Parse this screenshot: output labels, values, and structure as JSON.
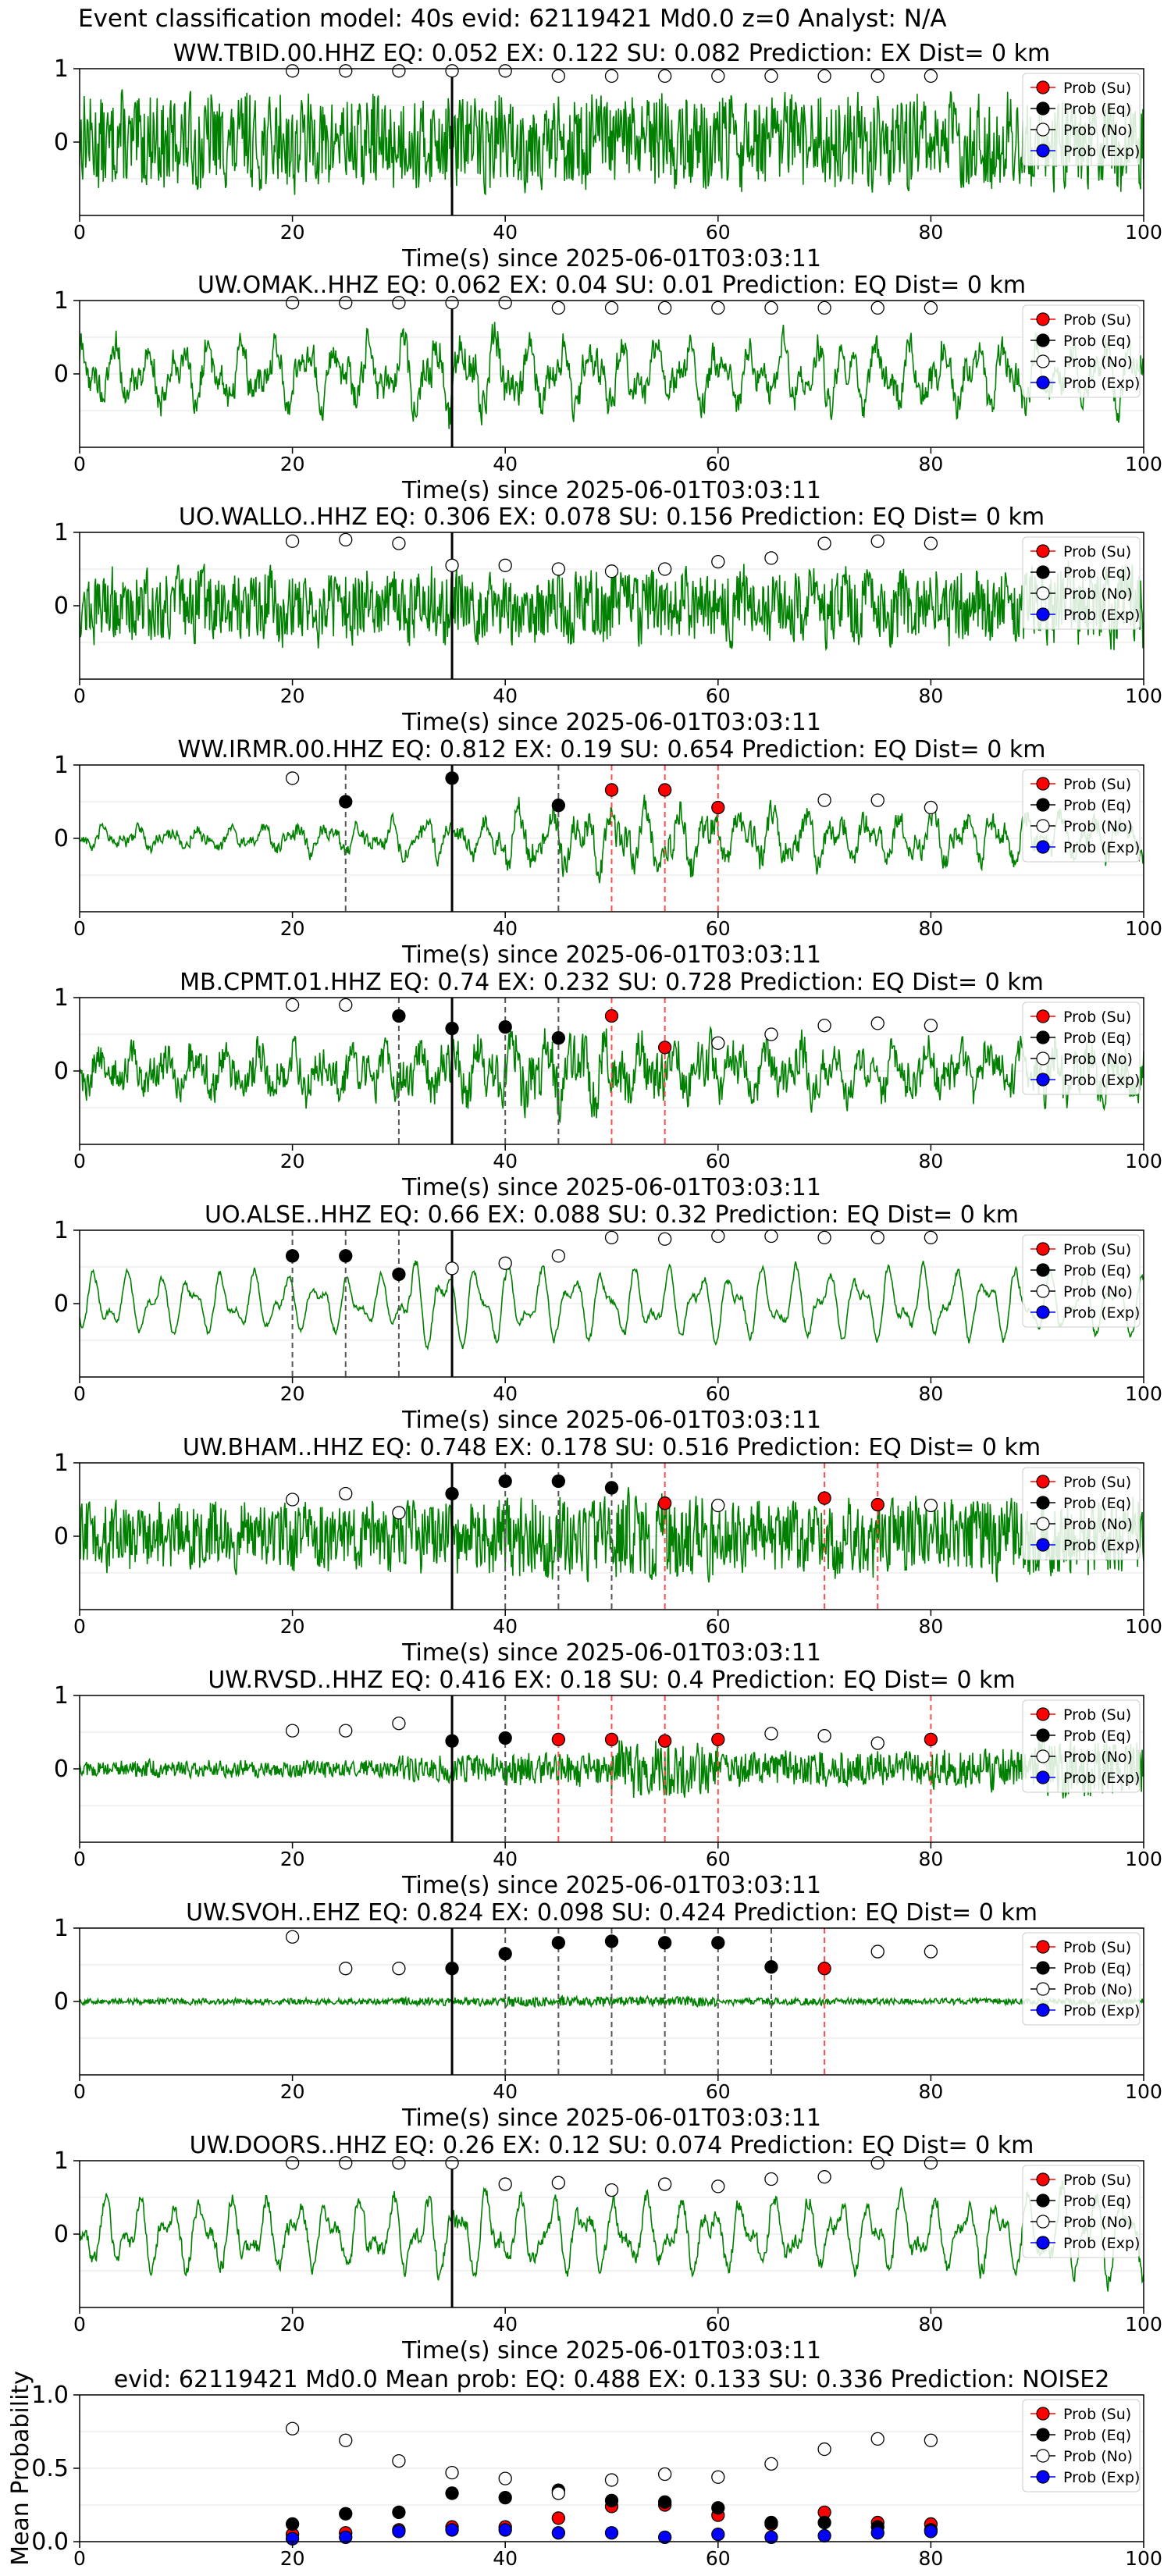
{
  "figure": {
    "title": "Event classification model: 40s evid: 62119421 Md0.0 z=0 Analyst: N/A"
  },
  "colors": {
    "waveform": "#008000",
    "su": "#ff0000",
    "eq": "#000000",
    "no": "#ffffff",
    "exp": "#0000ff",
    "grid": "#e6e6e6"
  },
  "legend": [
    "Prob (Su)",
    "Prob (Eq)",
    "Prob (No)",
    "Prob (Exp)"
  ],
  "chart_data": [
    {
      "type": "line",
      "title": "WW.TBID.00.HHZ   EQ: 0.052  EX: 0.122  SU: 0.082   Prediction: EX    Dist= 0 km",
      "xlabel": "Time(s) since 2025-06-01T03:03:11",
      "xlim": [
        0,
        100
      ],
      "ylim": [
        -1,
        1
      ],
      "xticks": [
        0,
        20,
        40,
        60,
        80,
        100
      ],
      "yticks": [
        0,
        1
      ],
      "pick_time": 35,
      "waveform": {
        "amp": 0.55,
        "smooth": 0.15,
        "env": [
          0.9,
          0.9,
          0.9,
          0.9,
          0.9,
          0.9,
          0.9,
          0.9,
          0.9,
          0.9
        ]
      },
      "markers": {
        "no": [
          [
            20,
            0.97
          ],
          [
            25,
            0.97
          ],
          [
            30,
            0.97
          ],
          [
            35,
            0.97
          ],
          [
            40,
            0.97
          ],
          [
            45,
            0.9
          ],
          [
            50,
            0.9
          ],
          [
            55,
            0.9
          ],
          [
            60,
            0.9
          ],
          [
            65,
            0.9
          ],
          [
            70,
            0.9
          ],
          [
            75,
            0.9
          ],
          [
            80,
            0.9
          ]
        ],
        "eq": [],
        "su": [],
        "exp": []
      },
      "eq_lines": [],
      "su_lines": []
    },
    {
      "type": "line",
      "title": "UW.OMAK..HHZ   EQ: 0.062  EX: 0.04  SU: 0.01   Prediction: EQ    Dist= 0 km",
      "xlabel": "Time(s) since 2025-06-01T03:03:11",
      "xlim": [
        0,
        100
      ],
      "ylim": [
        -1,
        1
      ],
      "xticks": [
        0,
        20,
        40,
        60,
        80,
        100
      ],
      "yticks": [
        0,
        1
      ],
      "pick_time": 35,
      "waveform": {
        "amp": 0.6,
        "smooth": 0.6,
        "env": [
          0.8,
          0.8,
          0.8,
          1.0,
          0.9,
          0.8,
          0.8,
          0.8,
          0.9,
          0.8
        ]
      },
      "markers": {
        "no": [
          [
            20,
            0.97
          ],
          [
            25,
            0.97
          ],
          [
            30,
            0.97
          ],
          [
            35,
            0.97
          ],
          [
            40,
            0.97
          ],
          [
            45,
            0.9
          ],
          [
            50,
            0.9
          ],
          [
            55,
            0.9
          ],
          [
            60,
            0.9
          ],
          [
            65,
            0.9
          ],
          [
            70,
            0.9
          ],
          [
            75,
            0.9
          ],
          [
            80,
            0.9
          ]
        ],
        "eq": [],
        "su": [],
        "exp": []
      },
      "eq_lines": [],
      "su_lines": []
    },
    {
      "type": "line",
      "title": "UO.WALLO..HHZ   EQ: 0.306  EX: 0.078  SU: 0.156   Prediction: EQ    Dist= 0 km",
      "xlabel": "Time(s) since 2025-06-01T03:03:11",
      "xlim": [
        0,
        100
      ],
      "ylim": [
        -1,
        1
      ],
      "xticks": [
        0,
        20,
        40,
        60,
        80,
        100
      ],
      "yticks": [
        0,
        1
      ],
      "pick_time": 35,
      "waveform": {
        "amp": 0.45,
        "smooth": 0.2,
        "env": [
          0.9,
          0.9,
          0.9,
          0.9,
          0.9,
          0.9,
          0.9,
          0.9,
          0.9,
          1.0
        ]
      },
      "markers": {
        "no": [
          [
            20,
            0.88
          ],
          [
            25,
            0.9
          ],
          [
            30,
            0.85
          ],
          [
            35,
            0.55
          ],
          [
            40,
            0.55
          ],
          [
            45,
            0.5
          ],
          [
            50,
            0.47
          ],
          [
            55,
            0.5
          ],
          [
            60,
            0.6
          ],
          [
            65,
            0.65
          ],
          [
            70,
            0.85
          ],
          [
            75,
            0.88
          ],
          [
            80,
            0.85
          ]
        ],
        "eq": [],
        "su": [],
        "exp": []
      },
      "eq_lines": [],
      "su_lines": []
    },
    {
      "type": "line",
      "title": "WW.IRMR.00.HHZ   EQ: 0.812  EX: 0.19  SU: 0.654   Prediction: EQ    Dist= 0 km",
      "xlabel": "Time(s) since 2025-06-01T03:03:11",
      "xlim": [
        0,
        100
      ],
      "ylim": [
        -1,
        1
      ],
      "xticks": [
        0,
        20,
        40,
        60,
        80,
        100
      ],
      "yticks": [
        0,
        1
      ],
      "pick_time": 35,
      "waveform": {
        "amp": 0.45,
        "smooth": 0.6,
        "env": [
          0.4,
          0.4,
          0.5,
          0.6,
          1.0,
          1.0,
          0.9,
          0.8,
          0.8,
          0.7
        ]
      },
      "markers": {
        "no": [
          [
            20,
            0.82
          ],
          [
            70,
            0.52
          ],
          [
            75,
            0.52
          ],
          [
            80,
            0.42
          ]
        ],
        "eq": [
          [
            25,
            0.5
          ],
          [
            35,
            0.82
          ],
          [
            45,
            0.45
          ]
        ],
        "su": [
          [
            50,
            0.66
          ],
          [
            55,
            0.66
          ],
          [
            60,
            0.42
          ]
        ],
        "exp": []
      },
      "eq_lines": [
        25,
        45
      ],
      "su_lines": [
        50,
        55,
        60
      ]
    },
    {
      "type": "line",
      "title": "MB.CPMT.01.HHZ   EQ: 0.74  EX: 0.232  SU: 0.728   Prediction: EQ    Dist= 0 km",
      "xlabel": "Time(s) since 2025-06-01T03:03:11",
      "xlim": [
        0,
        100
      ],
      "ylim": [
        -1,
        1
      ],
      "xticks": [
        0,
        20,
        40,
        60,
        80,
        100
      ],
      "yticks": [
        0,
        1
      ],
      "pick_time": 35,
      "waveform": {
        "amp": 0.55,
        "smooth": 0.45,
        "env": [
          0.6,
          0.7,
          0.7,
          0.8,
          1.0,
          0.9,
          0.8,
          0.7,
          0.7,
          0.8
        ]
      },
      "markers": {
        "no": [
          [
            20,
            0.9
          ],
          [
            25,
            0.9
          ],
          [
            60,
            0.38
          ],
          [
            65,
            0.5
          ],
          [
            70,
            0.62
          ],
          [
            75,
            0.65
          ],
          [
            80,
            0.62
          ]
        ],
        "eq": [
          [
            30,
            0.75
          ],
          [
            35,
            0.58
          ],
          [
            40,
            0.6
          ],
          [
            45,
            0.45
          ]
        ],
        "su": [
          [
            50,
            0.75
          ],
          [
            55,
            0.32
          ]
        ],
        "exp": []
      },
      "eq_lines": [
        30,
        40,
        45
      ],
      "su_lines": [
        50,
        55
      ]
    },
    {
      "type": "line",
      "title": "UO.ALSE..HHZ   EQ: 0.66  EX: 0.088  SU: 0.32   Prediction: EQ    Dist= 0 km",
      "xlabel": "Time(s) since 2025-06-01T03:03:11",
      "xlim": [
        0,
        100
      ],
      "ylim": [
        -1,
        1
      ],
      "xticks": [
        0,
        20,
        40,
        60,
        80,
        100
      ],
      "yticks": [
        0,
        1
      ],
      "pick_time": 35,
      "waveform": {
        "amp": 0.5,
        "smooth": 0.85,
        "env": [
          0.7,
          0.7,
          0.6,
          1.0,
          0.8,
          0.8,
          0.8,
          0.8,
          0.8,
          0.7
        ]
      },
      "markers": {
        "no": [
          [
            35,
            0.48
          ],
          [
            40,
            0.55
          ],
          [
            45,
            0.65
          ],
          [
            50,
            0.9
          ],
          [
            55,
            0.88
          ],
          [
            60,
            0.92
          ],
          [
            65,
            0.92
          ],
          [
            70,
            0.9
          ],
          [
            75,
            0.9
          ],
          [
            80,
            0.9
          ]
        ],
        "eq": [
          [
            20,
            0.65
          ],
          [
            25,
            0.65
          ],
          [
            30,
            0.4
          ]
        ],
        "su": [],
        "exp": []
      },
      "eq_lines": [
        20,
        25,
        30
      ],
      "su_lines": []
    },
    {
      "type": "line",
      "title": "UW.BHAM..HHZ   EQ: 0.748  EX: 0.178  SU: 0.516   Prediction: EQ    Dist= 0 km",
      "xlabel": "Time(s) since 2025-06-01T03:03:11",
      "xlim": [
        0,
        100
      ],
      "ylim": [
        -1,
        1
      ],
      "xticks": [
        0,
        20,
        40,
        60,
        80,
        100
      ],
      "yticks": [
        0,
        1
      ],
      "pick_time": 35,
      "waveform": {
        "amp": 0.45,
        "smooth": 0.15,
        "env": [
          0.8,
          0.8,
          0.8,
          0.8,
          1.0,
          1.0,
          0.8,
          0.9,
          0.9,
          0.9
        ]
      },
      "markers": {
        "no": [
          [
            20,
            0.5
          ],
          [
            25,
            0.58
          ],
          [
            30,
            0.32
          ],
          [
            60,
            0.42
          ],
          [
            80,
            0.42
          ]
        ],
        "eq": [
          [
            35,
            0.58
          ],
          [
            40,
            0.75
          ],
          [
            45,
            0.75
          ],
          [
            50,
            0.66
          ]
        ],
        "su": [
          [
            55,
            0.45
          ],
          [
            70,
            0.52
          ],
          [
            75,
            0.43
          ]
        ],
        "exp": []
      },
      "eq_lines": [
        40,
        45,
        50
      ],
      "su_lines": [
        55,
        70,
        75
      ]
    },
    {
      "type": "line",
      "title": "UW.RVSD..HHZ   EQ: 0.416  EX: 0.18  SU: 0.4   Prediction: EQ    Dist= 0 km",
      "xlabel": "Time(s) since 2025-06-01T03:03:11",
      "xlim": [
        0,
        100
      ],
      "ylim": [
        -1,
        1
      ],
      "xticks": [
        0,
        20,
        40,
        60,
        80,
        100
      ],
      "yticks": [
        0,
        1
      ],
      "pick_time": 35,
      "waveform": {
        "amp": 0.3,
        "smooth": 0.15,
        "env": [
          0.3,
          0.3,
          0.3,
          0.5,
          0.6,
          1.0,
          0.6,
          0.6,
          0.7,
          1.0
        ]
      },
      "markers": {
        "no": [
          [
            20,
            0.52
          ],
          [
            25,
            0.52
          ],
          [
            30,
            0.62
          ],
          [
            65,
            0.48
          ],
          [
            70,
            0.45
          ],
          [
            75,
            0.35
          ]
        ],
        "eq": [
          [
            35,
            0.38
          ],
          [
            40,
            0.42
          ]
        ],
        "su": [
          [
            45,
            0.4
          ],
          [
            50,
            0.4
          ],
          [
            55,
            0.38
          ],
          [
            60,
            0.4
          ],
          [
            80,
            0.4
          ]
        ],
        "exp": []
      },
      "eq_lines": [
        40
      ],
      "su_lines": [
        45,
        50,
        55,
        60,
        80
      ]
    },
    {
      "type": "line",
      "title": "UW.SVOH..EHZ   EQ: 0.824  EX: 0.098  SU: 0.424   Prediction: EQ    Dist= 0 km",
      "xlabel": "Time(s) since 2025-06-01T03:03:11",
      "xlim": [
        0,
        100
      ],
      "ylim": [
        -1,
        1
      ],
      "xticks": [
        0,
        20,
        40,
        60,
        80,
        100
      ],
      "yticks": [
        0,
        1
      ],
      "pick_time": 35,
      "waveform": {
        "amp": 0.05,
        "smooth": 0.1,
        "env": [
          0.6,
          0.6,
          0.6,
          0.8,
          1.0,
          1.0,
          0.7,
          0.6,
          0.6,
          0.6
        ]
      },
      "markers": {
        "no": [
          [
            20,
            0.88
          ],
          [
            25,
            0.45
          ],
          [
            30,
            0.45
          ],
          [
            75,
            0.68
          ],
          [
            80,
            0.68
          ]
        ],
        "eq": [
          [
            35,
            0.45
          ],
          [
            40,
            0.65
          ],
          [
            45,
            0.8
          ],
          [
            50,
            0.82
          ],
          [
            55,
            0.8
          ],
          [
            60,
            0.8
          ],
          [
            65,
            0.47
          ]
        ],
        "su": [
          [
            70,
            0.45
          ]
        ],
        "exp": []
      },
      "eq_lines": [
        40,
        45,
        50,
        55,
        60,
        65
      ],
      "su_lines": [
        70
      ]
    },
    {
      "type": "line",
      "title": "UW.DOORS..HHZ   EQ: 0.26  EX: 0.12  SU: 0.074   Prediction: EQ    Dist= 0 km",
      "xlabel": "Time(s) since 2025-06-01T03:03:11",
      "xlim": [
        0,
        100
      ],
      "ylim": [
        -1,
        1
      ],
      "xticks": [
        0,
        20,
        40,
        60,
        80,
        100
      ],
      "yticks": [
        0,
        1
      ],
      "pick_time": 35,
      "waveform": {
        "amp": 0.55,
        "smooth": 0.75,
        "env": [
          0.8,
          0.8,
          0.8,
          0.9,
          0.8,
          0.8,
          0.8,
          0.8,
          0.8,
          1.0
        ]
      },
      "markers": {
        "no": [
          [
            20,
            0.97
          ],
          [
            25,
            0.97
          ],
          [
            30,
            0.97
          ],
          [
            35,
            0.97
          ],
          [
            40,
            0.68
          ],
          [
            45,
            0.7
          ],
          [
            50,
            0.6
          ],
          [
            55,
            0.68
          ],
          [
            60,
            0.65
          ],
          [
            65,
            0.75
          ],
          [
            70,
            0.78
          ],
          [
            75,
            0.97
          ],
          [
            80,
            0.97
          ]
        ],
        "eq": [],
        "su": [],
        "exp": []
      },
      "eq_lines": [],
      "su_lines": []
    },
    {
      "type": "scatter",
      "title": "evid: 62119421  Md0.0   Mean prob:   EQ: 0.488  EX: 0.133  SU: 0.336   Prediction: NOISE2",
      "ylabel": "Mean Probability",
      "xlim": [
        0,
        100
      ],
      "ylim": [
        0,
        1
      ],
      "xticks": [
        0,
        20,
        40,
        60,
        80,
        100
      ],
      "yticks": [
        0.0,
        0.5,
        1.0
      ],
      "x": [
        20,
        25,
        30,
        35,
        40,
        45,
        50,
        55,
        60,
        65,
        70,
        75,
        80
      ],
      "series": [
        {
          "name": "Prob (Su)",
          "values": [
            0.05,
            0.06,
            0.08,
            0.1,
            0.1,
            0.16,
            0.24,
            0.25,
            0.18,
            0.12,
            0.2,
            0.13,
            0.12
          ]
        },
        {
          "name": "Prob (Eq)",
          "values": [
            0.12,
            0.19,
            0.2,
            0.33,
            0.3,
            0.35,
            0.28,
            0.27,
            0.23,
            0.13,
            0.13,
            0.1,
            0.08
          ]
        },
        {
          "name": "Prob (No)",
          "values": [
            0.77,
            0.69,
            0.55,
            0.47,
            0.43,
            0.33,
            0.42,
            0.46,
            0.44,
            0.53,
            0.63,
            0.7,
            0.69
          ]
        },
        {
          "name": "Prob (Exp)",
          "values": [
            0.02,
            0.03,
            0.07,
            0.08,
            0.08,
            0.06,
            0.06,
            0.03,
            0.05,
            0.03,
            0.04,
            0.06,
            0.07
          ]
        }
      ]
    }
  ]
}
